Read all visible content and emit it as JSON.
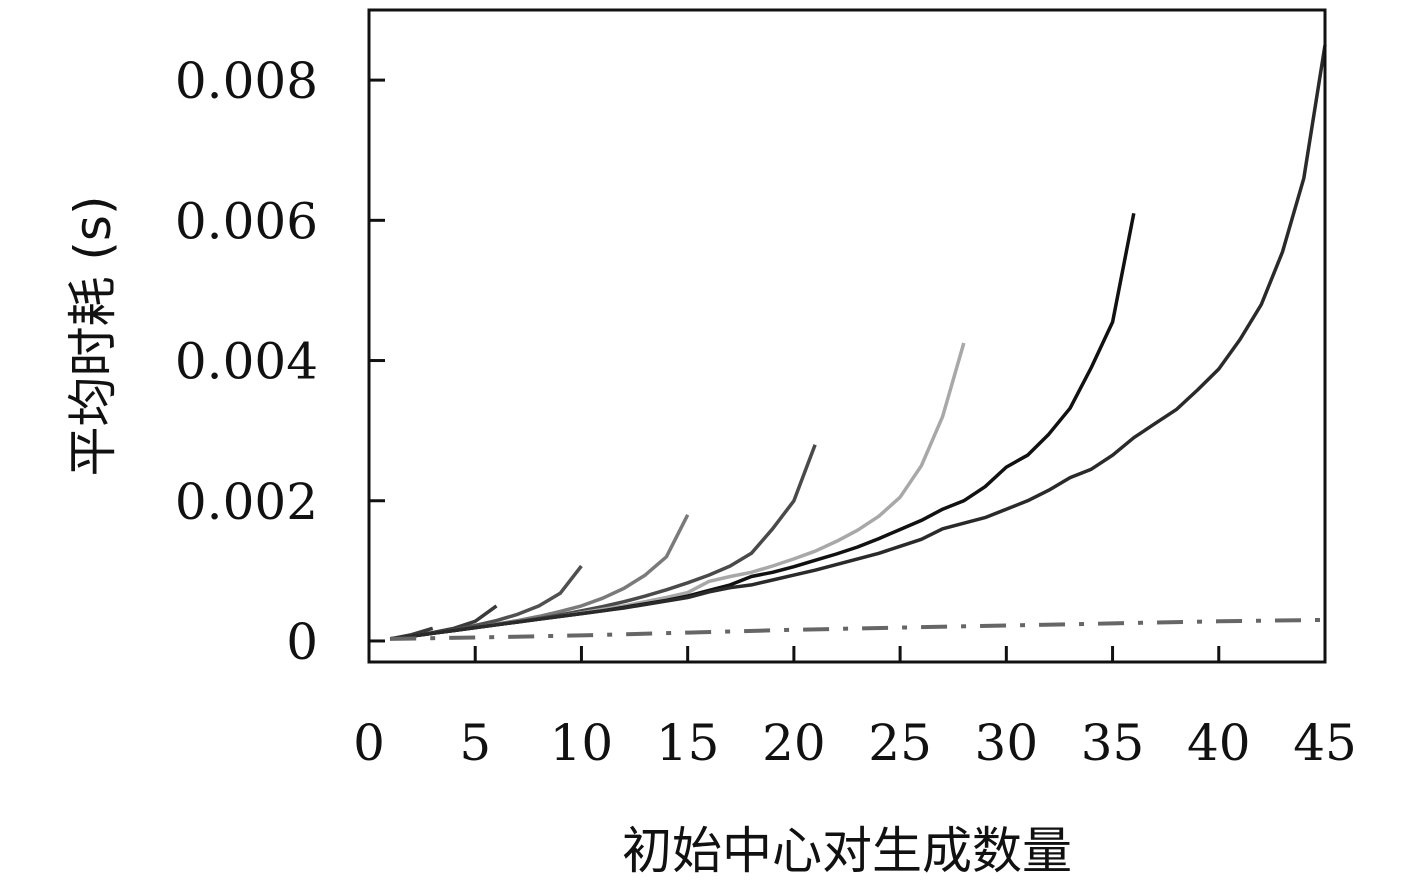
{
  "chart_data": {
    "type": "line",
    "title": "",
    "xlabel": "初始中心对生成数量",
    "ylabel": "平均时耗 (s)",
    "xlim": [
      0,
      45
    ],
    "ylim": [
      -0.0003,
      0.009
    ],
    "x_ticks": [
      "0",
      "5",
      "10",
      "15",
      "20",
      "25",
      "30",
      "35",
      "40",
      "45"
    ],
    "y_ticks": [
      {
        "value": 0,
        "label": "0"
      },
      {
        "value": 0.002,
        "label": "0.002"
      },
      {
        "value": 0.004,
        "label": "0.004"
      },
      {
        "value": 0.006,
        "label": "0.006"
      },
      {
        "value": 0.008,
        "label": "0.008"
      }
    ],
    "grid": false,
    "legend": "none",
    "series": [
      {
        "color": "#3a3a3a",
        "dash": "solid",
        "x": [
          1,
          2,
          3
        ],
        "y": [
          3e-05,
          9e-05,
          0.00018
        ]
      },
      {
        "color": "#3a3a3a",
        "dash": "solid",
        "x": [
          1,
          2,
          3,
          4,
          5,
          6
        ],
        "y": [
          3e-05,
          7e-05,
          0.00012,
          0.00018,
          0.00028,
          0.0005
        ]
      },
      {
        "color": "#505050",
        "dash": "solid",
        "x": [
          1,
          2,
          3,
          4,
          5,
          6,
          7,
          8,
          9,
          10
        ],
        "y": [
          3e-05,
          7e-05,
          0.00011,
          0.00016,
          0.00022,
          0.00029,
          0.00038,
          0.0005,
          0.00068,
          0.00107
        ]
      },
      {
        "color": "#7a7a7a",
        "dash": "solid",
        "x": [
          1,
          2,
          3,
          4,
          5,
          6,
          7,
          8,
          9,
          10,
          11,
          12,
          13,
          14,
          15
        ],
        "y": [
          3e-05,
          7e-05,
          0.00011,
          0.00015,
          0.00019,
          0.00024,
          0.00029,
          0.00035,
          0.00042,
          0.0005,
          0.00061,
          0.00075,
          0.00094,
          0.0012,
          0.0018
        ]
      },
      {
        "color": "#4a4a4a",
        "dash": "solid",
        "x": [
          1,
          2,
          3,
          4,
          5,
          6,
          7,
          8,
          9,
          10,
          11,
          12,
          13,
          14,
          15,
          16,
          17,
          18,
          19,
          20,
          21
        ],
        "y": [
          3e-05,
          7e-05,
          0.00011,
          0.00015,
          0.00019,
          0.00023,
          0.00027,
          0.00032,
          0.00037,
          0.00043,
          0.00049,
          0.00056,
          0.00064,
          0.00073,
          0.00083,
          0.00094,
          0.00107,
          0.00125,
          0.0016,
          0.002,
          0.0028
        ]
      },
      {
        "color": "#a8a8a8",
        "dash": "solid",
        "x": [
          1,
          2,
          3,
          4,
          5,
          6,
          7,
          8,
          9,
          10,
          11,
          12,
          13,
          14,
          15,
          16,
          17,
          18,
          19,
          20,
          21,
          22,
          23,
          24,
          25,
          26,
          27,
          28
        ],
        "y": [
          3e-05,
          7e-05,
          0.00011,
          0.00015,
          0.00019,
          0.00023,
          0.00027,
          0.00031,
          0.00035,
          0.0004,
          0.00045,
          0.0005,
          0.00056,
          0.00062,
          0.00069,
          0.00085,
          0.00092,
          0.00098,
          0.00107,
          0.00117,
          0.00128,
          0.00142,
          0.00158,
          0.00178,
          0.00205,
          0.0025,
          0.0032,
          0.00425
        ]
      },
      {
        "color": "#111111",
        "dash": "solid",
        "x": [
          1,
          2,
          3,
          4,
          5,
          6,
          7,
          8,
          9,
          10,
          11,
          12,
          13,
          14,
          15,
          16,
          17,
          18,
          19,
          20,
          21,
          22,
          23,
          24,
          25,
          26,
          27,
          28,
          29,
          30,
          31,
          32,
          33,
          34,
          35,
          36
        ],
        "y": [
          3e-05,
          7e-05,
          0.00011,
          0.00015,
          0.00019,
          0.00023,
          0.00027,
          0.00031,
          0.00035,
          0.00039,
          0.00043,
          0.00048,
          0.00053,
          0.00058,
          0.00064,
          0.00072,
          0.0008,
          0.00092,
          0.00098,
          0.00106,
          0.00115,
          0.00124,
          0.00134,
          0.00146,
          0.00159,
          0.00172,
          0.00188,
          0.002,
          0.0022,
          0.00248,
          0.00265,
          0.00295,
          0.00332,
          0.0039,
          0.00455,
          0.0061
        ]
      },
      {
        "color": "#2a2a2a",
        "dash": "solid",
        "x": [
          1,
          2,
          3,
          4,
          5,
          6,
          7,
          8,
          9,
          10,
          11,
          12,
          13,
          14,
          15,
          16,
          17,
          18,
          19,
          20,
          21,
          22,
          23,
          24,
          25,
          26,
          27,
          28,
          29,
          30,
          31,
          32,
          33,
          34,
          35,
          36,
          37,
          38,
          39,
          40,
          41,
          42,
          43,
          44,
          45
        ],
        "y": [
          3e-05,
          7e-05,
          0.00011,
          0.00015,
          0.00019,
          0.00023,
          0.00027,
          0.00031,
          0.00035,
          0.00039,
          0.00043,
          0.00047,
          0.00052,
          0.00057,
          0.00062,
          0.0007,
          0.00076,
          0.0008,
          0.00087,
          0.00094,
          0.00101,
          0.00109,
          0.00117,
          0.00125,
          0.00135,
          0.00145,
          0.0016,
          0.00168,
          0.00176,
          0.00188,
          0.002,
          0.00215,
          0.00233,
          0.00245,
          0.00265,
          0.0029,
          0.0031,
          0.0033,
          0.00358,
          0.00388,
          0.0043,
          0.0048,
          0.00555,
          0.0066,
          0.0085
        ]
      },
      {
        "color": "#666666",
        "dash": "dashdot",
        "x": [
          1,
          5,
          10,
          15,
          20,
          25,
          30,
          35,
          40,
          45
        ],
        "y": [
          3e-05,
          5e-05,
          8e-05,
          0.00012,
          0.00016,
          0.00019,
          0.00022,
          0.00025,
          0.00028,
          0.0003
        ]
      }
    ]
  }
}
